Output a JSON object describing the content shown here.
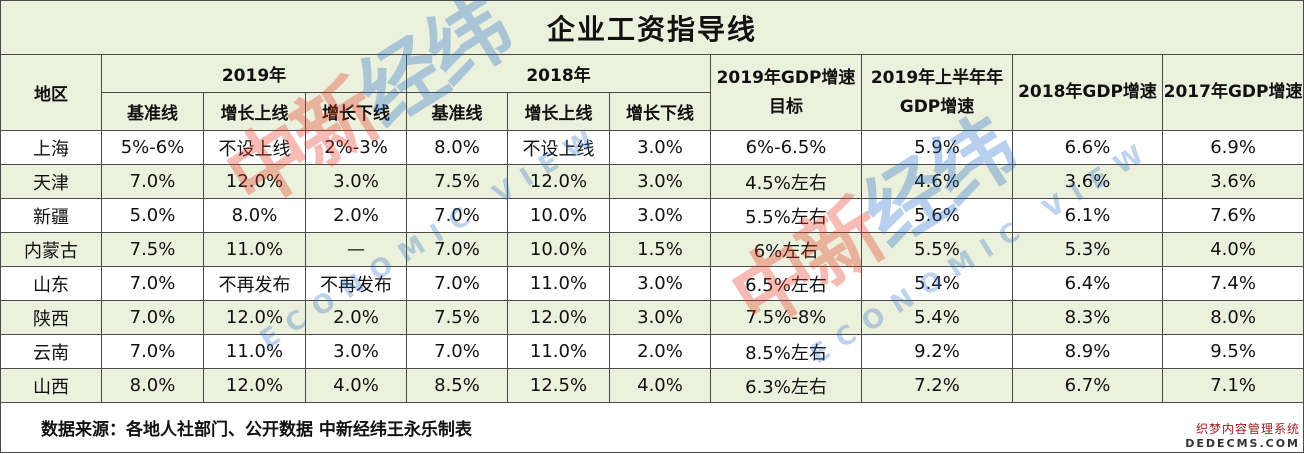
{
  "colors": {
    "header_green": "#ebf1dc",
    "border": "#4a4a4a"
  },
  "title": "企业工资指导线",
  "headers": {
    "region": "地区",
    "y2019": "2019年",
    "y2018": "2018年",
    "gdp_target_2019": "2019年GDP增速目标",
    "gdp_h1_2019": "2019年上半年年GDP增速",
    "gdp_2018": "2018年GDP增速",
    "gdp_2017": "2017年GDP增速",
    "sub": [
      "基准线",
      "增长上线",
      "增长下线",
      "基准线",
      "增长上线",
      "增长下线"
    ]
  },
  "rows": [
    [
      "上海",
      "5%-6%",
      "不设上线",
      "2%-3%",
      "8.0%",
      "不设上线",
      "3.0%",
      "6%-6.5%",
      "5.9%",
      "6.6%",
      "6.9%"
    ],
    [
      "天津",
      "7.0%",
      "12.0%",
      "3.0%",
      "7.5%",
      "12.0%",
      "3.0%",
      "4.5%左右",
      "4.6%",
      "3.6%",
      "3.6%"
    ],
    [
      "新疆",
      "5.0%",
      "8.0%",
      "2.0%",
      "7.0%",
      "10.0%",
      "3.0%",
      "5.5%左右",
      "5.6%",
      "6.1%",
      "7.6%"
    ],
    [
      "内蒙古",
      "7.5%",
      "11.0%",
      "—",
      "7.0%",
      "10.0%",
      "1.5%",
      "6%左右",
      "5.5%",
      "5.3%",
      "4.0%"
    ],
    [
      "山东",
      "7.0%",
      "不再发布",
      "不再发布",
      "7.0%",
      "11.0%",
      "3.0%",
      "6.5%左右",
      "5.4%",
      "6.4%",
      "7.4%"
    ],
    [
      "陕西",
      "7.0%",
      "12.0%",
      "2.0%",
      "7.5%",
      "12.0%",
      "3.0%",
      "7.5%-8%",
      "5.4%",
      "8.3%",
      "8.0%"
    ],
    [
      "云南",
      "7.0%",
      "11.0%",
      "3.0%",
      "7.0%",
      "11.0%",
      "2.0%",
      "8.5%左右",
      "9.2%",
      "8.9%",
      "9.5%"
    ],
    [
      "山西",
      "8.0%",
      "12.0%",
      "4.0%",
      "8.5%",
      "12.5%",
      "4.0%",
      "6.3%左右",
      "7.2%",
      "6.7%",
      "7.1%"
    ]
  ],
  "footer": "数据来源：各地人社部门、公开数据 中新经纬王永乐制表",
  "watermark": {
    "cn_red": "中新",
    "cn_blue": "经纬",
    "en": "ECONOMIC VIEW"
  },
  "corner": {
    "line1": "织梦内容管理系统",
    "line2": "DEDECMS.COM"
  }
}
